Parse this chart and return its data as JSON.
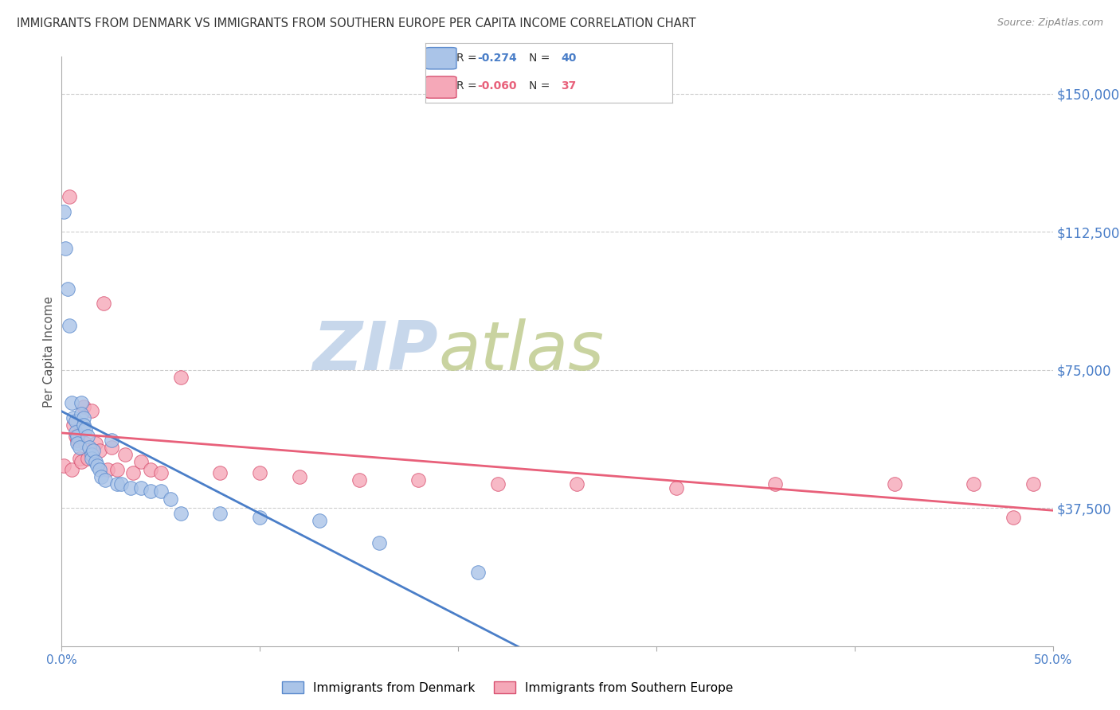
{
  "title": "IMMIGRANTS FROM DENMARK VS IMMIGRANTS FROM SOUTHERN EUROPE PER CAPITA INCOME CORRELATION CHART",
  "source": "Source: ZipAtlas.com",
  "ylabel": "Per Capita Income",
  "ytick_labels": [
    "$37,500",
    "$75,000",
    "$112,500",
    "$150,000"
  ],
  "ytick_values": [
    37500,
    75000,
    112500,
    150000
  ],
  "ymin": 0,
  "ymax": 160000,
  "xmin": 0.0,
  "xmax": 0.5,
  "legend_label1": "Immigrants from Denmark",
  "legend_label2": "Immigrants from Southern Europe",
  "blue_scatter_color": "#aac4e8",
  "pink_scatter_color": "#f5a8b8",
  "blue_line_color": "#4a7ec8",
  "pink_line_color": "#e8607a",
  "blue_edge_color": "#5888cc",
  "pink_edge_color": "#d85070",
  "axis_label_color": "#4a7ec8",
  "watermark_zip_color": "#bdd0e8",
  "watermark_atlas_color": "#c8d8a0",
  "denmark_x": [
    0.001,
    0.002,
    0.003,
    0.004,
    0.005,
    0.006,
    0.007,
    0.007,
    0.008,
    0.008,
    0.009,
    0.01,
    0.01,
    0.011,
    0.011,
    0.012,
    0.013,
    0.014,
    0.015,
    0.015,
    0.016,
    0.017,
    0.018,
    0.019,
    0.02,
    0.022,
    0.025,
    0.028,
    0.03,
    0.035,
    0.04,
    0.045,
    0.05,
    0.055,
    0.06,
    0.08,
    0.1,
    0.13,
    0.16,
    0.21
  ],
  "denmark_y": [
    118000,
    108000,
    97000,
    87000,
    66000,
    62000,
    61000,
    58000,
    57000,
    55000,
    54000,
    66000,
    63000,
    62000,
    60000,
    59000,
    57000,
    54000,
    52000,
    51000,
    53000,
    50000,
    49000,
    48000,
    46000,
    45000,
    56000,
    44000,
    44000,
    43000,
    43000,
    42000,
    42000,
    40000,
    36000,
    36000,
    35000,
    34000,
    28000,
    20000
  ],
  "southern_europe_x": [
    0.001,
    0.004,
    0.005,
    0.006,
    0.007,
    0.008,
    0.009,
    0.01,
    0.011,
    0.012,
    0.013,
    0.015,
    0.017,
    0.019,
    0.021,
    0.023,
    0.025,
    0.028,
    0.032,
    0.036,
    0.04,
    0.045,
    0.05,
    0.06,
    0.08,
    0.1,
    0.12,
    0.15,
    0.18,
    0.22,
    0.26,
    0.31,
    0.36,
    0.42,
    0.46,
    0.48,
    0.49
  ],
  "southern_europe_y": [
    49000,
    122000,
    48000,
    60000,
    57000,
    56000,
    51000,
    50000,
    65000,
    55000,
    51000,
    64000,
    55000,
    53000,
    93000,
    48000,
    54000,
    48000,
    52000,
    47000,
    50000,
    48000,
    47000,
    73000,
    47000,
    47000,
    46000,
    45000,
    45000,
    44000,
    44000,
    43000,
    44000,
    44000,
    44000,
    35000,
    44000
  ]
}
